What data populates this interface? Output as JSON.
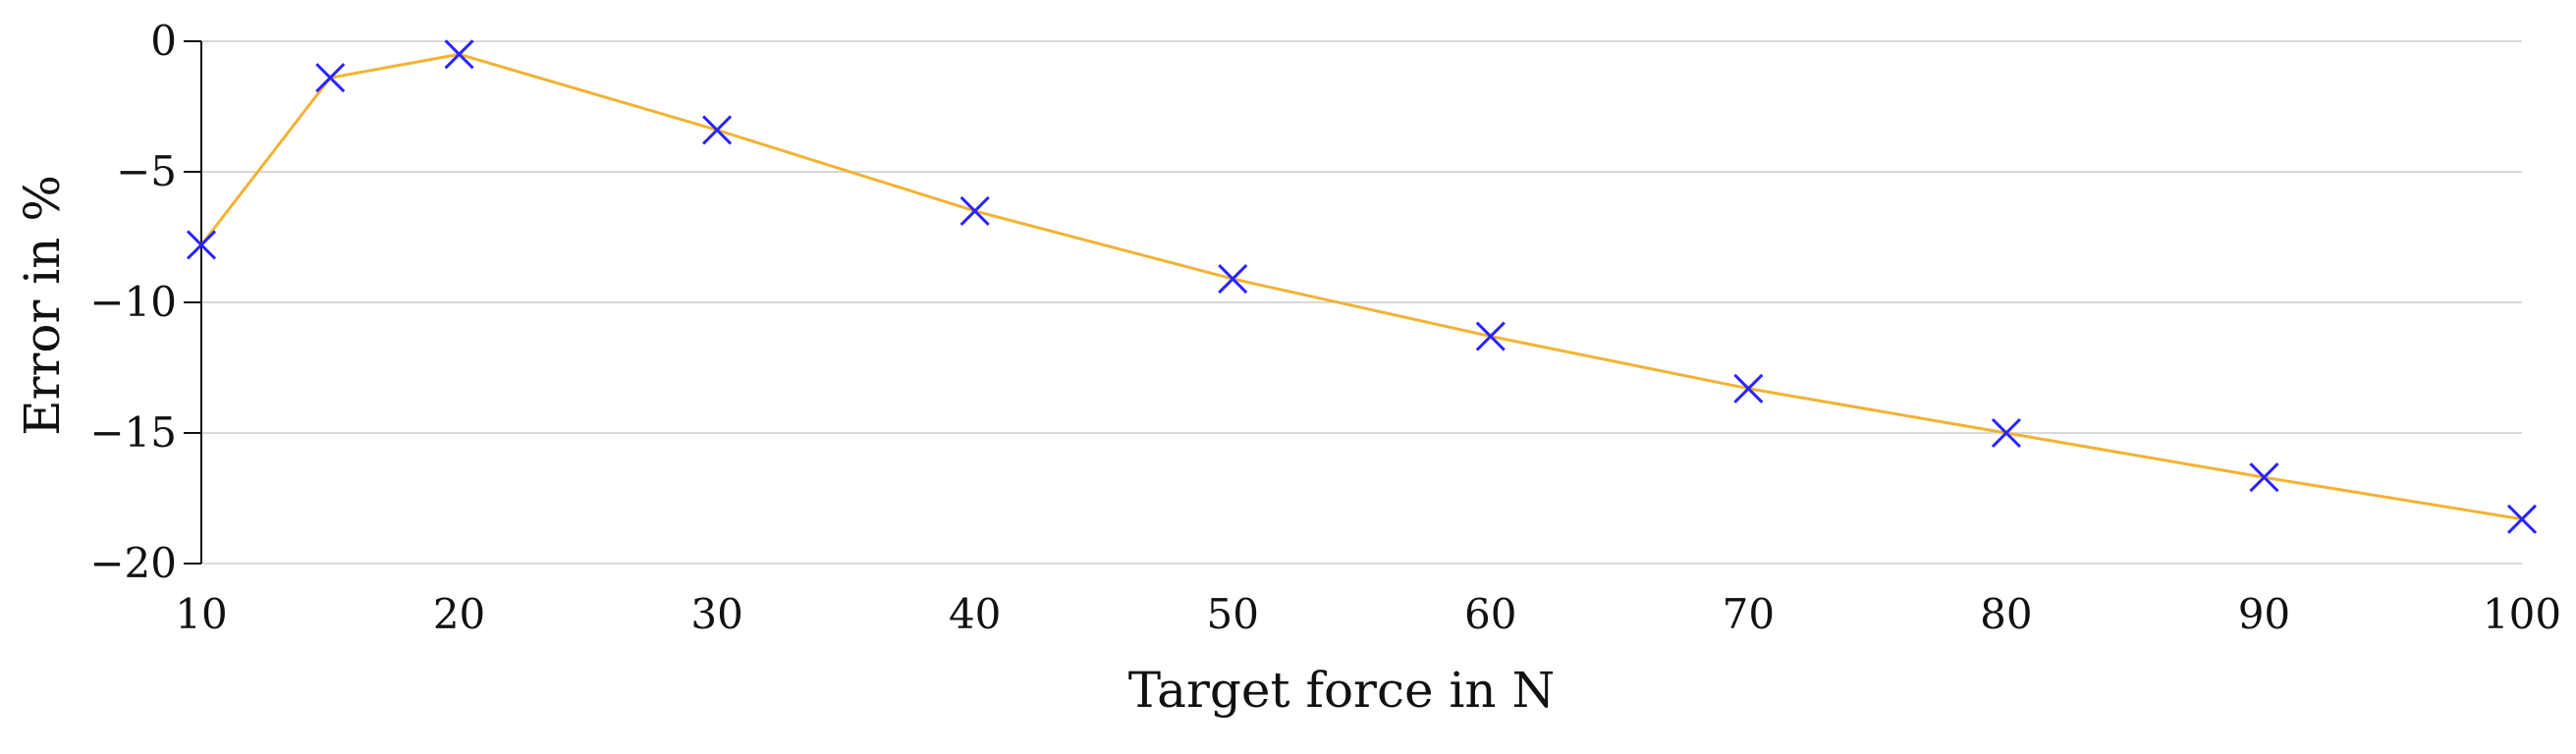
{
  "chart_data": {
    "type": "line",
    "title": "",
    "xlabel": "Target force in N",
    "ylabel": "Error in %",
    "xlim": [
      10,
      100
    ],
    "ylim": [
      -20,
      0
    ],
    "xticks": [
      10,
      20,
      30,
      40,
      50,
      60,
      70,
      80,
      90,
      100
    ],
    "yticks": [
      0,
      -5,
      -10,
      -15,
      -20
    ],
    "xtick_labels": [
      "10",
      "20",
      "30",
      "40",
      "50",
      "60",
      "70",
      "80",
      "90",
      "100"
    ],
    "ytick_labels": [
      "0",
      "−5",
      "−10",
      "−15",
      "−20"
    ],
    "grid": "horizontal",
    "legend": "none",
    "series": [
      {
        "x": [
          10,
          15,
          20,
          30,
          40,
          50,
          60,
          70,
          80,
          90,
          100
        ],
        "y": [
          -7.8,
          -1.4,
          -0.5,
          -3.4,
          -6.5,
          -9.1,
          -11.3,
          -13.3,
          -15.0,
          -16.7,
          -18.3
        ],
        "line_color": "#f2b233",
        "marker_color": "#2a24ff",
        "marker": "x"
      }
    ]
  }
}
